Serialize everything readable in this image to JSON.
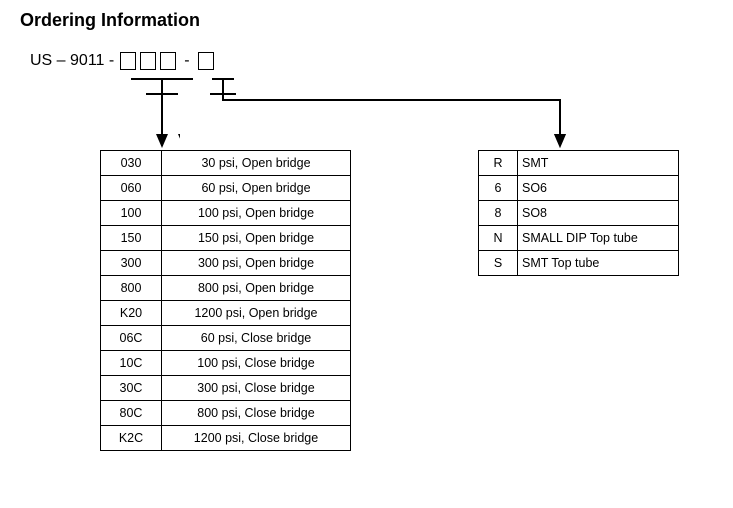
{
  "title": "Ordering Information",
  "part_prefix": "US – 9011 -",
  "left_table": {
    "rows": [
      {
        "code": "030",
        "desc": "30 psi, Open bridge"
      },
      {
        "code": "060",
        "desc": "60 psi, Open bridge"
      },
      {
        "code": "100",
        "desc": "100 psi, Open bridge"
      },
      {
        "code": "150",
        "desc": "150 psi, Open bridge"
      },
      {
        "code": "300",
        "desc": "300 psi, Open bridge"
      },
      {
        "code": "800",
        "desc": "800 psi, Open bridge"
      },
      {
        "code": "K20",
        "desc": "1200 psi, Open bridge"
      },
      {
        "code": "06C",
        "desc": "60 psi, Close bridge"
      },
      {
        "code": "10C",
        "desc": "100 psi, Close bridge"
      },
      {
        "code": "30C",
        "desc": "300 psi, Close bridge"
      },
      {
        "code": "80C",
        "desc": "800 psi, Close bridge"
      },
      {
        "code": "K2C",
        "desc": "1200 psi, Close bridge"
      }
    ]
  },
  "right_table": {
    "rows": [
      {
        "code": "R",
        "desc": "SMT"
      },
      {
        "code": "6",
        "desc": "SO6"
      },
      {
        "code": "8",
        "desc": "SO8"
      },
      {
        "code": "N",
        "desc": "SMALL DIP Top tube"
      },
      {
        "code": "S",
        "desc": "SMT Top tube"
      }
    ]
  },
  "style": {
    "arrow_stroke": "#000000",
    "arrow_width": 2
  }
}
